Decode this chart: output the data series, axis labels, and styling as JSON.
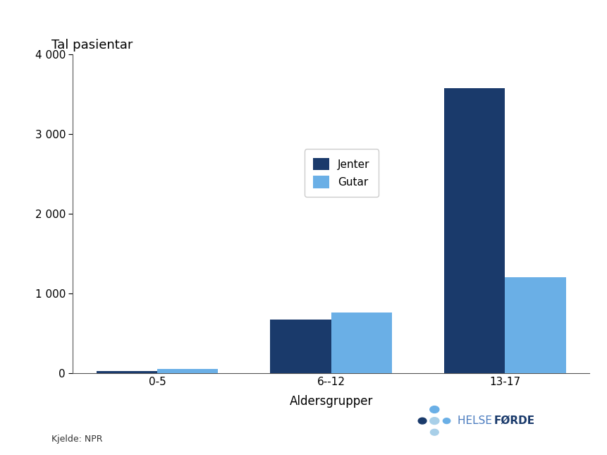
{
  "categories": [
    "0-5",
    "6--12",
    "13-17"
  ],
  "jenter_values": [
    30,
    670,
    3580
  ],
  "gutar_values": [
    50,
    760,
    1200
  ],
  "jenter_color": "#1a3a6b",
  "gutar_color": "#6aafe6",
  "ylabel": "Tal pasientar",
  "xlabel": "Aldersgrupper",
  "ylim": [
    0,
    4000
  ],
  "yticks": [
    0,
    1000,
    2000,
    3000,
    4000
  ],
  "legend_labels": [
    "Jenter",
    "Gutar"
  ],
  "source_text": "Kjelde: NPR",
  "bar_width": 0.35,
  "background_color": "#ffffff",
  "axis_fontsize": 12,
  "tick_fontsize": 11,
  "label_fontsize": 13,
  "dot_colors_dark": "#1a3a6b",
  "dot_colors_mid": "#6aafe6",
  "dot_colors_light": "#a8cfe8",
  "helse_color": "#4a7bbf",
  "forde_color": "#1a3a6b"
}
